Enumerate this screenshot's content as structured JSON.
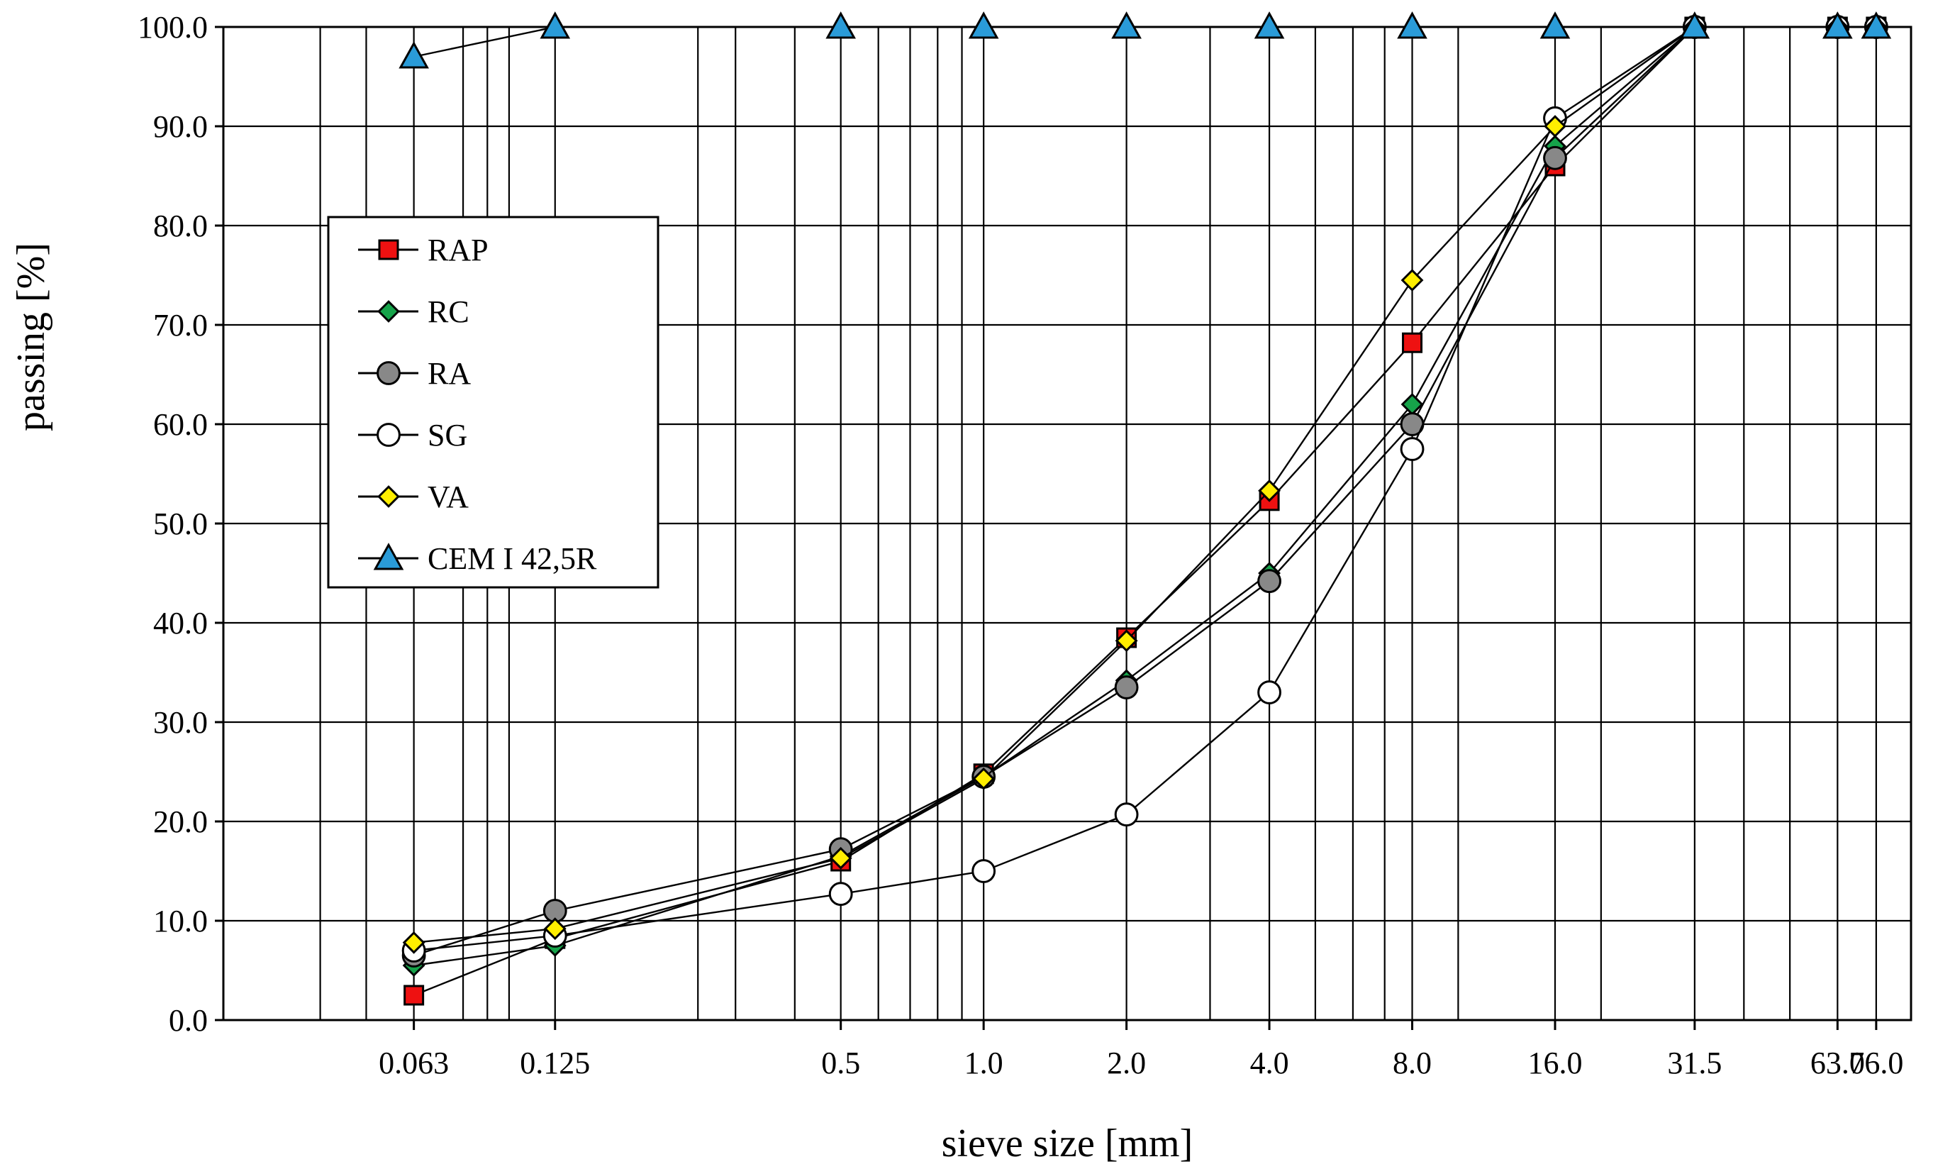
{
  "chart_data": {
    "type": "line",
    "x_scale": "log",
    "xlabel": "sieve size [mm]",
    "ylabel": "passing [%]",
    "xlim": [
      0.025,
      90
    ],
    "ylim": [
      0,
      100
    ],
    "y_ticks": [
      "0.0",
      "10.0",
      "20.0",
      "30.0",
      "40.0",
      "50.0",
      "60.0",
      "70.0",
      "80.0",
      "90.0",
      "100.0"
    ],
    "x_tick_values": [
      0.063,
      0.125,
      0.5,
      1.0,
      2.0,
      4.0,
      8.0,
      16.0,
      31.5,
      63.0,
      76.0
    ],
    "x_tick_labels": [
      "0.063",
      "0.125",
      "0.5",
      "1.0",
      "2.0",
      "4.0",
      "8.0",
      "16.0",
      "31.5",
      "63.0",
      "76.0"
    ],
    "x_gridlines": [
      0.04,
      0.05,
      0.063,
      0.08,
      0.09,
      0.1,
      0.125,
      0.25,
      0.3,
      0.4,
      0.5,
      0.6,
      0.7,
      0.8,
      0.9,
      1.0,
      2.0,
      3.0,
      4.0,
      5.0,
      6.0,
      7.0,
      8.0,
      10.0,
      16.0,
      20.0,
      31.5,
      40.0,
      50.0,
      63.0,
      76.0,
      90.0
    ],
    "grid": true,
    "legend_position": "upper-left",
    "series": [
      {
        "name": "RAP",
        "marker": "square",
        "color": "#ee1111",
        "x": [
          0.063,
          0.125,
          0.5,
          1.0,
          2.0,
          4.0,
          8.0,
          16.0,
          31.5,
          63.0,
          76.0
        ],
        "values": [
          2.5,
          8.2,
          16.0,
          24.8,
          38.5,
          52.3,
          68.2,
          86.0,
          100.0,
          100.0,
          100.0
        ]
      },
      {
        "name": "RC",
        "marker": "diamond",
        "color": "#16a34a",
        "x": [
          0.063,
          0.125,
          0.5,
          1.0,
          2.0,
          4.0,
          8.0,
          16.0,
          31.5,
          63.0,
          76.0
        ],
        "values": [
          5.5,
          7.5,
          16.5,
          24.5,
          34.2,
          45.0,
          62.0,
          88.0,
          100.0,
          100.0,
          100.0
        ]
      },
      {
        "name": "RA",
        "marker": "circle-filled",
        "color": "#888888",
        "x": [
          0.063,
          0.125,
          0.5,
          1.0,
          2.0,
          4.0,
          8.0,
          16.0,
          31.5,
          63.0,
          76.0
        ],
        "values": [
          6.5,
          11.0,
          17.2,
          24.5,
          33.5,
          44.2,
          60.0,
          86.8,
          100.0,
          100.0,
          100.0
        ]
      },
      {
        "name": "SG",
        "marker": "circle-open",
        "color": "#ffffff",
        "x": [
          0.063,
          0.125,
          0.5,
          1.0,
          2.0,
          4.0,
          8.0,
          16.0,
          31.5,
          63.0,
          76.0
        ],
        "values": [
          7.0,
          8.5,
          12.7,
          15.0,
          20.7,
          33.0,
          57.5,
          90.8,
          100.0,
          100.0,
          100.0
        ]
      },
      {
        "name": "VA",
        "marker": "diamond",
        "color": "#ffee00",
        "x": [
          0.063,
          0.125,
          0.5,
          1.0,
          2.0,
          4.0,
          8.0,
          16.0,
          31.5,
          63.0,
          76.0
        ],
        "values": [
          7.8,
          9.2,
          16.3,
          24.3,
          38.2,
          53.3,
          74.5,
          90.0,
          100.0,
          100.0,
          100.0
        ]
      },
      {
        "name": "CEM I 42,5R",
        "marker": "triangle",
        "color": "#2a9bd8",
        "x": [
          0.063,
          0.125,
          0.5,
          1.0,
          2.0,
          4.0,
          8.0,
          16.0,
          31.5,
          63.0,
          76.0
        ],
        "values": [
          97.0,
          100.0,
          100.0,
          100.0,
          100.0,
          100.0,
          100.0,
          100.0,
          100.0,
          100.0,
          100.0
        ]
      }
    ]
  }
}
